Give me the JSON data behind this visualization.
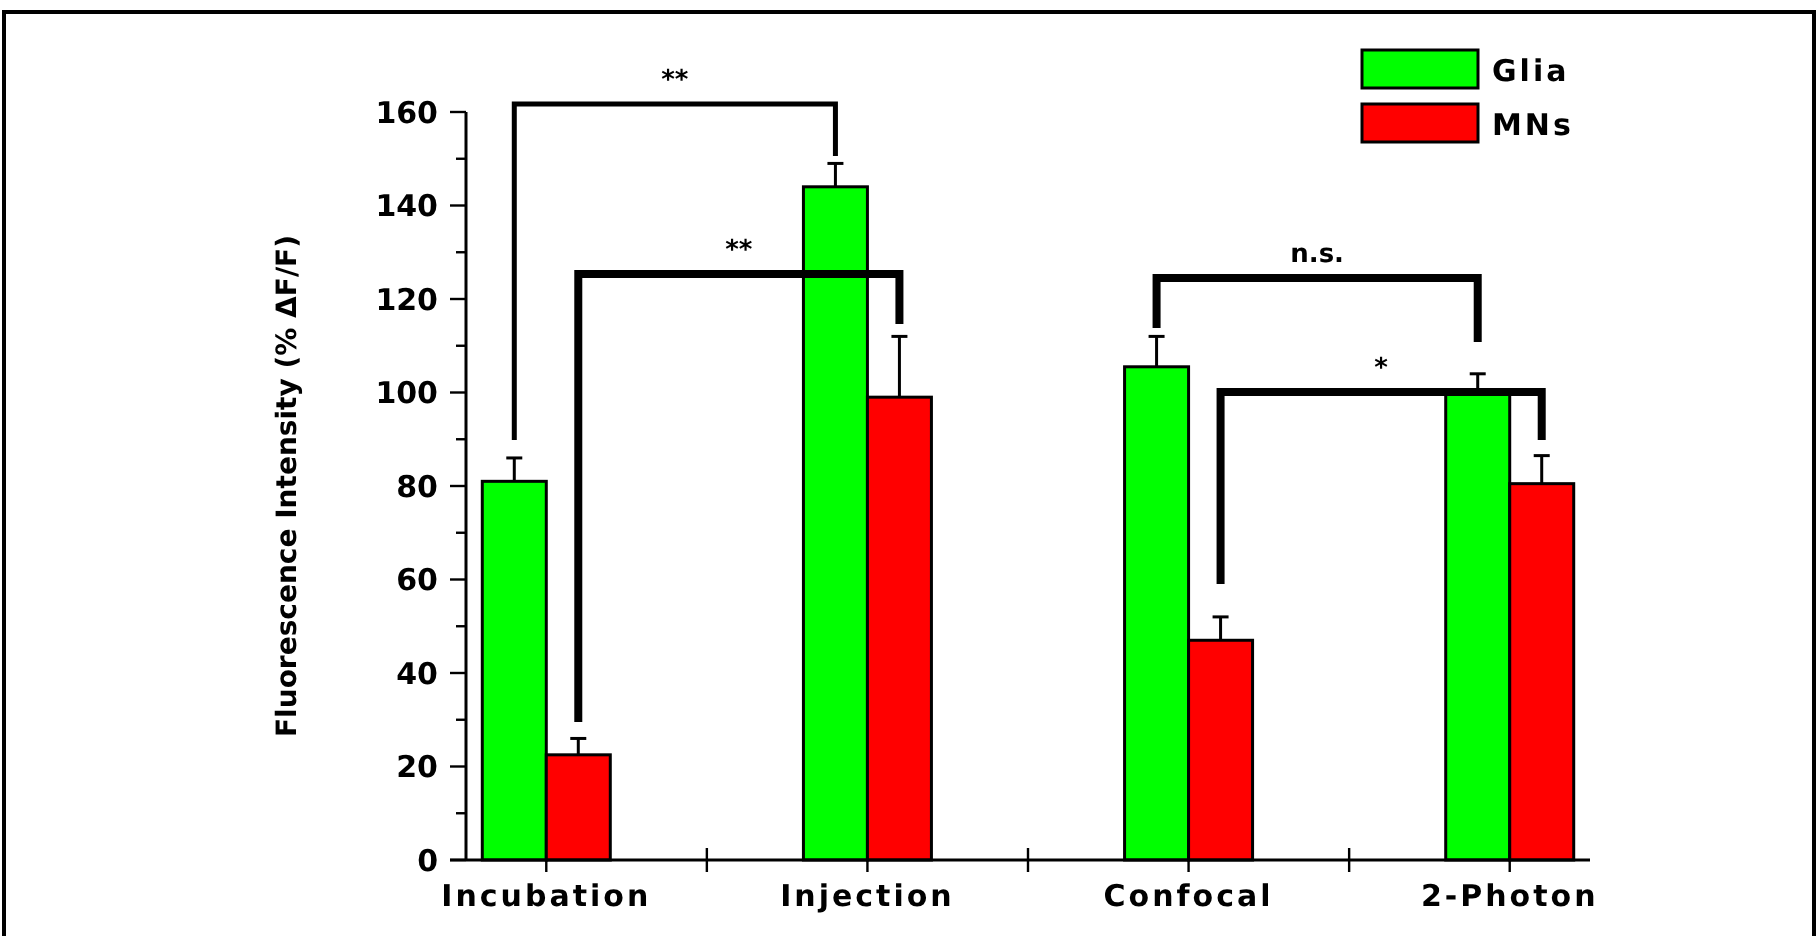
{
  "chart_data": {
    "type": "bar",
    "ylabel": "Fluorescence Intensity (% ΔF/F)",
    "categories": [
      "Incubation",
      "Injection",
      "Confocal",
      "2-Photon"
    ],
    "series": [
      {
        "name": "Glia",
        "color": "#00ff00",
        "values": [
          81,
          144,
          105.5,
          100
        ],
        "errors": [
          [
            81,
            86
          ],
          [
            144,
            149
          ],
          [
            105.5,
            112
          ],
          [
            100,
            104
          ]
        ]
      },
      {
        "name": "MNs",
        "color": "#ff0000",
        "values": [
          22.5,
          99,
          47,
          80.5
        ],
        "errors": [
          [
            22.5,
            26
          ],
          [
            99,
            112
          ],
          [
            47,
            52
          ],
          [
            80.5,
            86.5
          ]
        ]
      }
    ],
    "ylim": [
      0,
      160
    ],
    "yticks": [
      0,
      {
        "value": 10,
        "label": null
      },
      20,
      {
        "value": 30,
        "label": null
      },
      40,
      {
        "value": 50,
        "label": null
      },
      60,
      {
        "value": 70,
        "label": null
      },
      80,
      {
        "value": 90,
        "label": null
      },
      100,
      {
        "value": 110,
        "label": null
      },
      120,
      {
        "value": 130,
        "label": null
      },
      140,
      {
        "value": 150,
        "label": null
      },
      160
    ],
    "annotations": [
      "**",
      "**",
      "n.s.",
      "*"
    ],
    "legend": "top right"
  }
}
